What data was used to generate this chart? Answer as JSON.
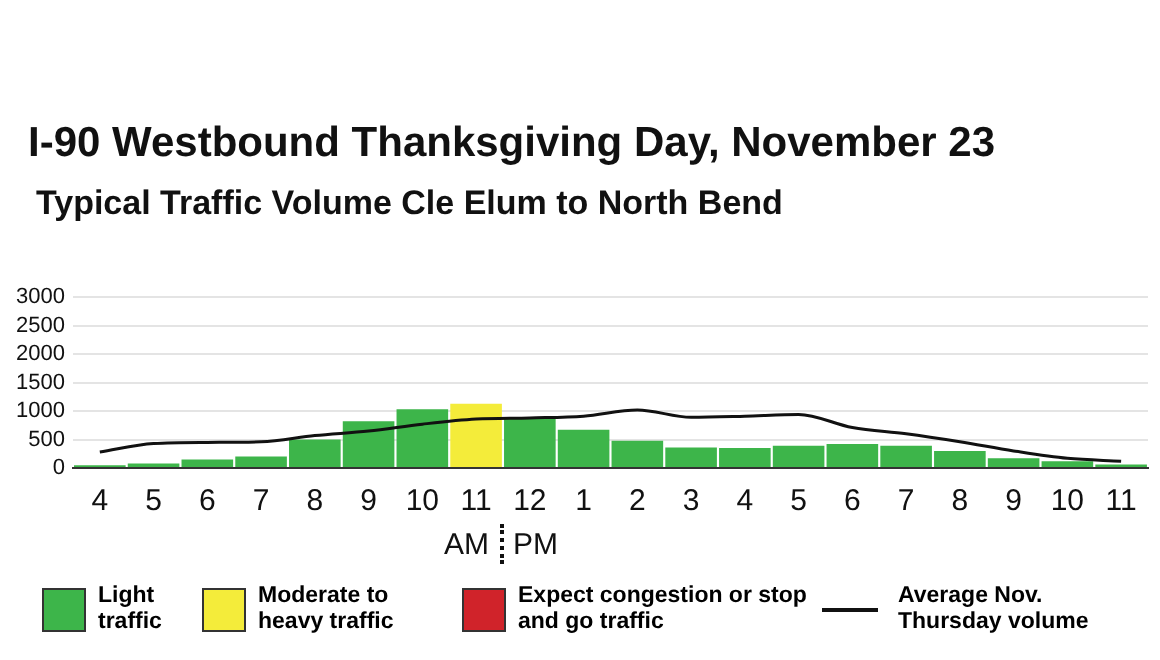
{
  "chart_data": {
    "type": "bar",
    "title": "I-90 Westbound Thanksgiving Day, November 23",
    "subtitle": "Typical Traffic Volume Cle Elum to North Bend",
    "categories": [
      "4",
      "5",
      "6",
      "7",
      "8",
      "9",
      "10",
      "11",
      "12",
      "1",
      "2",
      "3",
      "4",
      "5",
      "6",
      "7",
      "8",
      "9",
      "10",
      "11"
    ],
    "stacked": true,
    "series": [
      {
        "name": "Light traffic",
        "color": "#3db54a",
        "values": [
          50,
          80,
          150,
          200,
          500,
          820,
          1030,
          null,
          890,
          670,
          480,
          360,
          350,
          390,
          420,
          390,
          300,
          170,
          120,
          60
        ]
      },
      {
        "name": "Moderate to heavy traffic",
        "color": "#f4ec3a",
        "values": [
          null,
          null,
          null,
          null,
          null,
          null,
          null,
          1130,
          null,
          null,
          null,
          null,
          null,
          null,
          null,
          null,
          null,
          null,
          null,
          null
        ]
      },
      {
        "name": "Expect congestion or stop and go traffic",
        "color": "#d0232a",
        "values": [
          null,
          null,
          null,
          null,
          null,
          null,
          null,
          null,
          null,
          null,
          null,
          null,
          null,
          null,
          null,
          null,
          null,
          null,
          null,
          null
        ]
      },
      {
        "name": "Average Nov. Thursday volume",
        "type": "line",
        "color": "#111111",
        "values": [
          280,
          430,
          450,
          460,
          570,
          650,
          770,
          860,
          880,
          910,
          1020,
          890,
          910,
          940,
          710,
          600,
          460,
          300,
          170,
          120
        ]
      }
    ],
    "ylim": [
      0,
      3000
    ],
    "yticks": [
      0,
      500,
      1000,
      1500,
      2000,
      2500,
      3000
    ],
    "grid": "y",
    "legend": "bottom",
    "marker": "none",
    "annotations": [
      "AM",
      "PM"
    ]
  }
}
